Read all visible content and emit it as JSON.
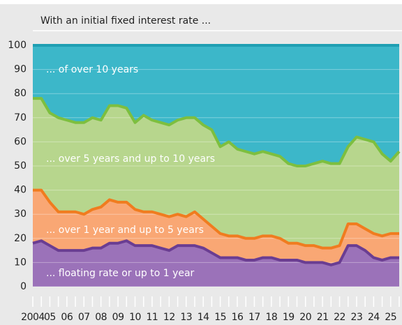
{
  "chart_data": {
    "type": "stacked_area",
    "title": "With an initial fixed interest rate ...",
    "categories": [
      "2004",
      null,
      "05",
      null,
      "06",
      null,
      "07",
      null,
      "08",
      null,
      "09",
      null,
      "10",
      null,
      "11",
      null,
      "12",
      null,
      "13",
      null,
      "14",
      null,
      "15",
      null,
      "16",
      null,
      "17",
      null,
      "18",
      null,
      "19",
      null,
      "20",
      null,
      "21",
      null,
      "22",
      null,
      "23",
      null,
      "24",
      null,
      "25",
      null
    ],
    "series": [
      {
        "name": "... floating rate or up to 1 year",
        "color": "#9b72b9",
        "line_color": "#6a3d92",
        "values": [
          18,
          19,
          17,
          15,
          15,
          15,
          15,
          16,
          16,
          18,
          18,
          19,
          17,
          17,
          17,
          16,
          15,
          17,
          17,
          17,
          16,
          14,
          12,
          12,
          12,
          11,
          11,
          12,
          12,
          11,
          11,
          11,
          10,
          10,
          10,
          9,
          10,
          17,
          17,
          15,
          12,
          11,
          12,
          12
        ]
      },
      {
        "name": "... over 1 year and up to 5 years",
        "color": "#f9a774",
        "line_color": "#f07c1f",
        "values": [
          22,
          21,
          18,
          16,
          16,
          16,
          15,
          16,
          17,
          18,
          17,
          16,
          15,
          14,
          14,
          14,
          14,
          13,
          12,
          14,
          12,
          11,
          10,
          9,
          9,
          9,
          9,
          9,
          9,
          9,
          7,
          7,
          7,
          7,
          6,
          7,
          7,
          9,
          9,
          9,
          10,
          10,
          10,
          10
        ]
      },
      {
        "name": "... over 5 years and up to 10 years",
        "color": "#b7d68d",
        "line_color": "#7dbf3f",
        "values": [
          38,
          38,
          37,
          39,
          38,
          37,
          38,
          38,
          36,
          39,
          40,
          39,
          36,
          40,
          38,
          38,
          38,
          39,
          41,
          39,
          39,
          40,
          36,
          39,
          36,
          36,
          35,
          35,
          34,
          34,
          33,
          32,
          33,
          34,
          36,
          35,
          34,
          32,
          36,
          37,
          38,
          34,
          30,
          34
        ]
      },
      {
        "name": "... of over 10 years",
        "color": "#3cb7c9",
        "line_color": "#1f9fb3",
        "values": [
          22,
          22,
          28,
          30,
          31,
          32,
          32,
          30,
          31,
          25,
          25,
          26,
          32,
          29,
          31,
          32,
          33,
          31,
          30,
          30,
          33,
          35,
          42,
          40,
          43,
          44,
          45,
          44,
          45,
          46,
          49,
          50,
          50,
          49,
          48,
          49,
          49,
          42,
          38,
          39,
          40,
          45,
          48,
          44
        ]
      }
    ],
    "ylim": [
      0,
      100
    ],
    "yticks": [
      0,
      10,
      20,
      30,
      40,
      50,
      60,
      70,
      80,
      90,
      100
    ],
    "grid": true
  }
}
